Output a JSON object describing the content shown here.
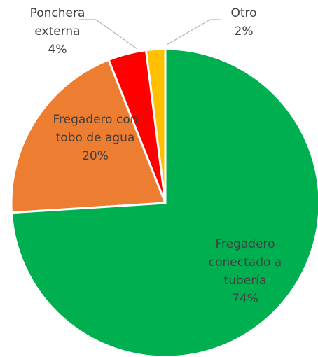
{
  "chart_data": {
    "type": "pie",
    "categories": [
      "Fregadero conectado a tubería",
      "Fregadero con tobo de agua",
      "Ponchera externa",
      "Otro"
    ],
    "values": [
      74,
      20,
      4,
      2
    ],
    "value_labels": [
      "74%",
      "20%",
      "4%",
      "2%"
    ],
    "colors": [
      "#00b050",
      "#ed7d31",
      "#ff0000",
      "#ffc000"
    ]
  }
}
